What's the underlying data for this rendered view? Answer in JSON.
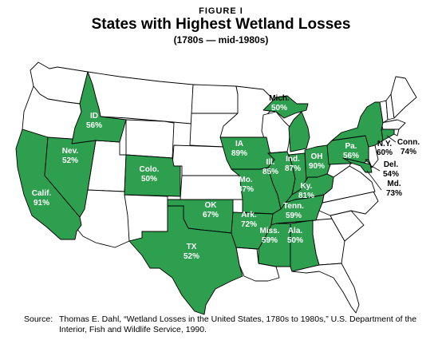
{
  "figure_label": "FIGURE I",
  "title": "States with Highest Wetland Losses",
  "subtitle": "(1780s — mid-1980s)",
  "colors": {
    "loss_fill": "#2e9e4f",
    "other_fill": "#ffffff",
    "outline": "#000000"
  },
  "states": [
    {
      "id": "ca",
      "name": "Calif.",
      "value": "91%"
    },
    {
      "id": "nv",
      "name": "Nev.",
      "value": "52%"
    },
    {
      "id": "id",
      "name": "ID",
      "value": "56%"
    },
    {
      "id": "co",
      "name": "Colo.",
      "value": "50%"
    },
    {
      "id": "ok",
      "name": "OK",
      "value": "67%"
    },
    {
      "id": "tx",
      "name": "TX",
      "value": "52%"
    },
    {
      "id": "ia",
      "name": "IA",
      "value": "89%"
    },
    {
      "id": "mo",
      "name": "Mo.",
      "value": "87%"
    },
    {
      "id": "ar",
      "name": "Ark.",
      "value": "72%"
    },
    {
      "id": "il",
      "name": "Ill.",
      "value": "85%"
    },
    {
      "id": "in",
      "name": "Ind.",
      "value": "87%"
    },
    {
      "id": "oh",
      "name": "OH",
      "value": "90%"
    },
    {
      "id": "mi",
      "name": "Mich.",
      "value": "50%"
    },
    {
      "id": "ky",
      "name": "Ky.",
      "value": "81%"
    },
    {
      "id": "tn",
      "name": "Tenn.",
      "value": "59%"
    },
    {
      "id": "ms",
      "name": "Miss.",
      "value": "59%"
    },
    {
      "id": "al",
      "name": "Ala.",
      "value": "50%"
    },
    {
      "id": "pa",
      "name": "Pa.",
      "value": "56%"
    },
    {
      "id": "ny",
      "name": "N.Y.",
      "value": "60%"
    },
    {
      "id": "ct",
      "name": "Conn.",
      "value": "74%"
    },
    {
      "id": "de",
      "name": "Del.",
      "value": "54%"
    },
    {
      "id": "md",
      "name": "Md.",
      "value": "73%"
    }
  ],
  "source": {
    "label": "Source:",
    "line1": "Thomas E. Dahl, “Wetland Losses in the United States, 1780s to 1980s,” U.S. Department of the",
    "line2": "Interior, Fish and Wildlife Service, 1990."
  }
}
